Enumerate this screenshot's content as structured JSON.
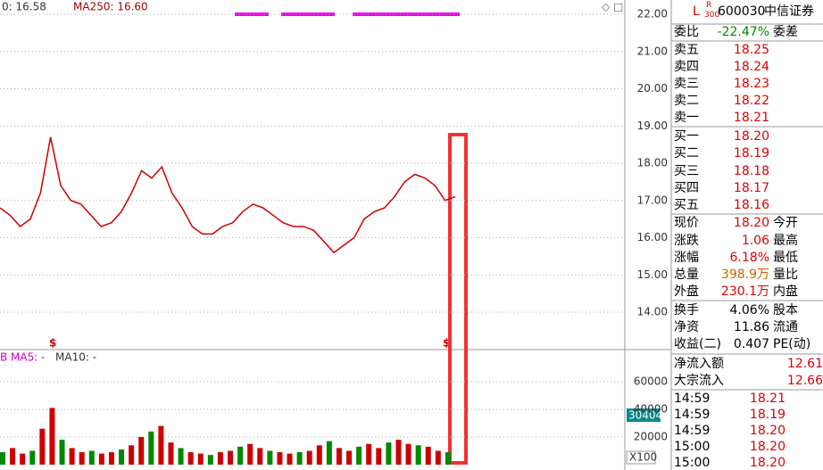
{
  "chart": {
    "prev_label": "0: 16.58",
    "ma_header": "MA250: 16.60",
    "price_ticks": [
      {
        "value": 22,
        "label": "22.00"
      },
      {
        "value": 21,
        "label": "21.00"
      },
      {
        "value": 20,
        "label": "20.00"
      },
      {
        "value": 19,
        "label": "19.00"
      },
      {
        "value": 18,
        "label": "18.00"
      },
      {
        "value": 17,
        "label": "17.00"
      },
      {
        "value": 16,
        "label": "16.00"
      },
      {
        "value": 15,
        "label": "15.00"
      },
      {
        "value": 14,
        "label": "14.00"
      }
    ],
    "price_trace": [
      16.8,
      16.6,
      16.3,
      16.5,
      17.2,
      18.7,
      17.4,
      17.0,
      16.9,
      16.6,
      16.3,
      16.4,
      16.7,
      17.2,
      17.8,
      17.6,
      17.9,
      17.2,
      16.8,
      16.3,
      16.1,
      16.1,
      16.3,
      16.4,
      16.7,
      16.9,
      16.8,
      16.6,
      16.4,
      16.3,
      16.3,
      16.2,
      15.9,
      15.6,
      15.8,
      16.0,
      16.5,
      16.7,
      16.8,
      17.1,
      17.5,
      17.7,
      17.6,
      17.4,
      17.0,
      17.1
    ],
    "volume_header": [
      "B",
      "MA5: -",
      "MA10: -"
    ],
    "volume_ticks": [
      60000,
      40000,
      20000
    ],
    "volume_trace": [
      9000,
      12000,
      8000,
      10000,
      26000,
      41000,
      18000,
      12000,
      9000,
      10000,
      8000,
      9000,
      11000,
      14000,
      20000,
      24000,
      28000,
      16000,
      12000,
      9000,
      8000,
      7000,
      9000,
      10000,
      13000,
      15000,
      12000,
      10000,
      9000,
      8000,
      9000,
      10000,
      14000,
      17000,
      12000,
      10000,
      13000,
      15000,
      12000,
      16000,
      18000,
      15000,
      14000,
      13000,
      10000,
      9000
    ],
    "current_volume": 30404,
    "scale_label": "X100",
    "signal_marks": [
      "$",
      "$"
    ]
  },
  "quote": {
    "header": [
      "L",
      "R",
      "300",
      "600030",
      "中信证券"
    ],
    "ratio": [
      "委比",
      "-22.47%",
      "委差"
    ],
    "book": [
      [
        "卖五",
        "18.25"
      ],
      [
        "卖四",
        "18.24"
      ],
      [
        "卖三",
        "18.23"
      ],
      [
        "卖二",
        "18.22"
      ],
      [
        "卖一",
        "18.21"
      ],
      [
        "买一",
        "18.20"
      ],
      [
        "买二",
        "18.19"
      ],
      [
        "买三",
        "18.18"
      ],
      [
        "买四",
        "18.17"
      ],
      [
        "买五",
        "18.16"
      ]
    ],
    "stats": [
      [
        "现价",
        "18.20",
        "今开"
      ],
      [
        "涨跌",
        "1.06",
        "最高"
      ],
      [
        "涨幅",
        "6.18%",
        "最低"
      ],
      [
        "总量",
        "398.9万",
        "量比"
      ],
      [
        "外盘",
        "230.1万",
        "内盘"
      ]
    ],
    "fundamentals": [
      [
        "换手",
        "4.06%",
        "股本"
      ],
      [
        "净资",
        "11.86",
        "流通"
      ],
      [
        "收益(二)",
        "0.407",
        "PE(动)"
      ]
    ],
    "flows": [
      [
        "净流入额",
        "12.61"
      ],
      [
        "大宗流入",
        "12.66"
      ]
    ],
    "ticks": [
      [
        "14:59",
        "18.21"
      ],
      [
        "14:59",
        "18.19"
      ],
      [
        "14:59",
        "18.20"
      ],
      [
        "15:00",
        "18.20"
      ],
      [
        "15:00",
        "18.20"
      ]
    ]
  }
}
